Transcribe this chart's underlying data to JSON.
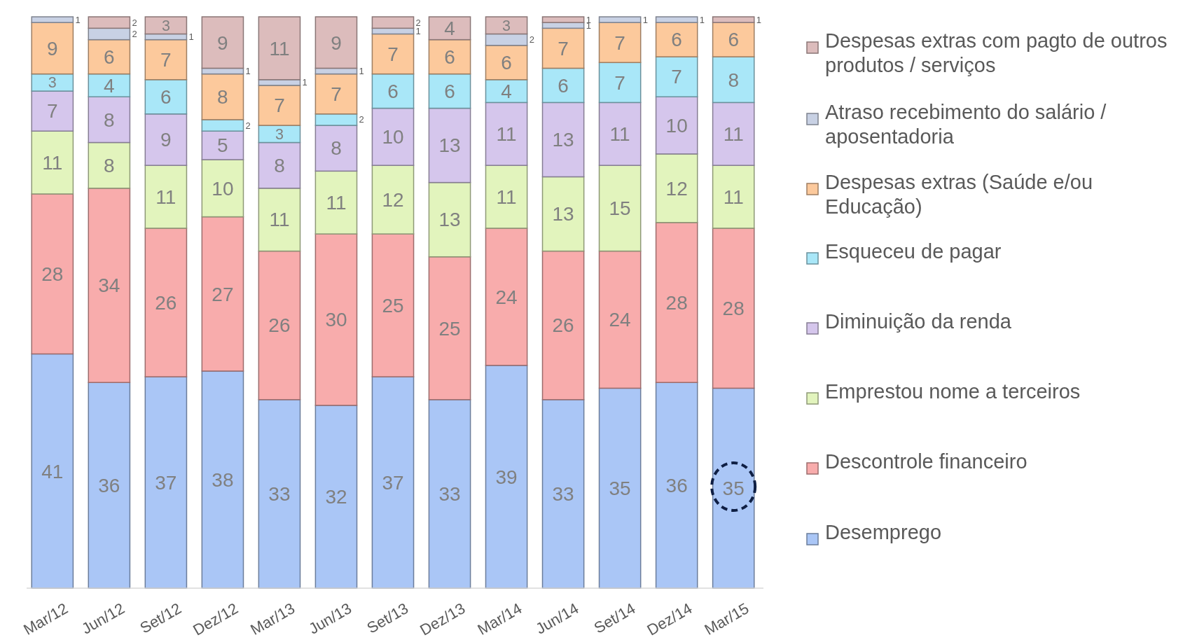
{
  "chart_data": {
    "type": "bar",
    "stacked": true,
    "data_labels": true,
    "legend": "right",
    "categories": [
      "Mar/12",
      "Jun/12",
      "Set/12",
      "Dez/12",
      "Mar/13",
      "Jun/13",
      "Set/13",
      "Dez/13",
      "Mar/14",
      "Jun/14",
      "Set/14",
      "Dez/14",
      "Mar/15"
    ],
    "series": [
      {
        "name": "Desemprego",
        "color": "#aac6f6",
        "values": [
          41,
          36,
          37,
          38,
          33,
          32,
          37,
          33,
          39,
          33,
          35,
          36,
          35
        ]
      },
      {
        "name": "Descontrole financeiro",
        "color": "#f8acac",
        "values": [
          28,
          34,
          26,
          27,
          26,
          30,
          25,
          25,
          24,
          26,
          24,
          28,
          28
        ]
      },
      {
        "name": "Emprestou nome a terceiros",
        "color": "#e2f4bd",
        "values": [
          11,
          8,
          11,
          10,
          11,
          11,
          12,
          13,
          11,
          13,
          15,
          12,
          11
        ]
      },
      {
        "name": "Diminuição da renda",
        "color": "#d5c6ec",
        "values": [
          7,
          8,
          9,
          5,
          8,
          8,
          10,
          13,
          11,
          13,
          11,
          10,
          11
        ]
      },
      {
        "name": "Esqueceu de pagar",
        "color": "#a9e7f8",
        "values": [
          3,
          4,
          6,
          2,
          3,
          2,
          6,
          6,
          4,
          6,
          7,
          7,
          8
        ]
      },
      {
        "name": "Despesas extras (Saúde e/ou Educação)",
        "color": "#fcc99c",
        "values": [
          9,
          6,
          7,
          8,
          7,
          7,
          7,
          6,
          6,
          7,
          7,
          6,
          6
        ]
      },
      {
        "name": "Atraso recebimento do salário / aposentadoria",
        "color": "#c8d1e4",
        "values": [
          1,
          2,
          1,
          1,
          1,
          1,
          1,
          null,
          2,
          1,
          1,
          1,
          null
        ]
      },
      {
        "name": "Despesas extras com pagto de outros produtos / serviços",
        "color": "#dcbcbc",
        "values": [
          null,
          2,
          3,
          9,
          11,
          9,
          2,
          4,
          3,
          1,
          null,
          null,
          1
        ]
      }
    ]
  }
}
